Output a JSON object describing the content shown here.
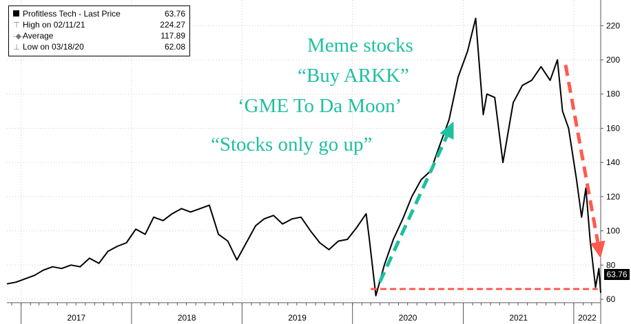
{
  "legend": {
    "series_name": "Profitless Tech - Last Price",
    "last_value": "63.76",
    "high_label": "High on 02/11/21",
    "high_value": "224.27",
    "average_label": "Average",
    "average_value": "117.89",
    "low_label": "Low on 03/18/20",
    "low_value": "62.08"
  },
  "annotations": {
    "line1": "Meme stocks",
    "line2": "“Buy ARKK”",
    "line3": "‘GME To Da Moon’",
    "line4": "“Stocks only go up”"
  },
  "last_price_label": "63.76",
  "colors": {
    "line": "#000000",
    "annotation_text": "#1fbf9f",
    "up_arrow": "#1fbf9f",
    "down_arrow": "#ff5a4f",
    "support_line": "#ff5a4f",
    "grid": "#c8c8c8"
  },
  "chart_data": {
    "type": "line",
    "title": "",
    "xlabel": "",
    "ylabel": "",
    "ylim": [
      58,
      235
    ],
    "yticks": [
      60,
      80,
      100,
      120,
      140,
      160,
      180,
      200,
      220
    ],
    "x_range": [
      "2016-11-15",
      "2022-03-31"
    ],
    "year_labels": [
      "2017",
      "2018",
      "2019",
      "2020",
      "2021",
      "2022"
    ],
    "grid": true,
    "legend_position": "top-left",
    "series": [
      {
        "name": "Profitless Tech - Last Price",
        "points": [
          [
            "2016-11-15",
            69
          ],
          [
            "2016-12-15",
            70
          ],
          [
            "2017-01-15",
            72
          ],
          [
            "2017-02-15",
            74
          ],
          [
            "2017-03-15",
            77
          ],
          [
            "2017-04-15",
            79
          ],
          [
            "2017-05-15",
            78
          ],
          [
            "2017-06-15",
            80
          ],
          [
            "2017-07-15",
            79
          ],
          [
            "2017-08-15",
            84
          ],
          [
            "2017-09-15",
            81
          ],
          [
            "2017-10-15",
            88
          ],
          [
            "2017-11-15",
            91
          ],
          [
            "2017-12-15",
            93
          ],
          [
            "2018-01-15",
            101
          ],
          [
            "2018-02-15",
            98
          ],
          [
            "2018-03-15",
            108
          ],
          [
            "2018-04-15",
            106
          ],
          [
            "2018-05-15",
            110
          ],
          [
            "2018-06-15",
            113
          ],
          [
            "2018-07-15",
            111
          ],
          [
            "2018-08-15",
            113
          ],
          [
            "2018-09-15",
            115
          ],
          [
            "2018-10-15",
            98
          ],
          [
            "2018-11-15",
            94
          ],
          [
            "2018-12-15",
            83
          ],
          [
            "2019-01-15",
            93
          ],
          [
            "2019-02-15",
            103
          ],
          [
            "2019-03-15",
            107
          ],
          [
            "2019-04-15",
            109
          ],
          [
            "2019-05-15",
            104
          ],
          [
            "2019-06-15",
            107
          ],
          [
            "2019-07-15",
            108
          ],
          [
            "2019-08-15",
            100
          ],
          [
            "2019-09-15",
            93
          ],
          [
            "2019-10-15",
            89
          ],
          [
            "2019-11-15",
            94
          ],
          [
            "2019-12-15",
            95
          ],
          [
            "2020-01-15",
            102
          ],
          [
            "2020-02-15",
            110
          ],
          [
            "2020-02-25",
            96
          ],
          [
            "2020-03-18",
            62.08
          ],
          [
            "2020-04-15",
            80
          ],
          [
            "2020-05-15",
            95
          ],
          [
            "2020-06-15",
            107
          ],
          [
            "2020-07-15",
            120
          ],
          [
            "2020-08-15",
            130
          ],
          [
            "2020-09-15",
            135
          ],
          [
            "2020-10-15",
            150
          ],
          [
            "2020-11-15",
            165
          ],
          [
            "2020-12-15",
            190
          ],
          [
            "2021-01-15",
            205
          ],
          [
            "2021-02-11",
            224.27
          ],
          [
            "2021-03-08",
            168
          ],
          [
            "2021-03-20",
            180
          ],
          [
            "2021-04-15",
            178
          ],
          [
            "2021-05-12",
            140
          ],
          [
            "2021-06-15",
            175
          ],
          [
            "2021-07-15",
            185
          ],
          [
            "2021-08-15",
            188
          ],
          [
            "2021-09-15",
            196
          ],
          [
            "2021-10-15",
            188
          ],
          [
            "2021-11-08",
            200
          ],
          [
            "2021-11-25",
            170
          ],
          [
            "2021-12-15",
            160
          ],
          [
            "2022-01-10",
            130
          ],
          [
            "2022-01-27",
            108
          ],
          [
            "2022-02-10",
            125
          ],
          [
            "2022-02-24",
            95
          ],
          [
            "2022-03-14",
            67
          ],
          [
            "2022-03-25",
            78
          ],
          [
            "2022-03-31",
            63.76
          ]
        ]
      }
    ],
    "overlays": {
      "up_arrow": {
        "from": [
          "2020-03-31",
          70
        ],
        "to": [
          "2020-11-30",
          164
        ]
      },
      "down_arrow": {
        "from": [
          "2021-12-05",
          197
        ],
        "to": [
          "2022-03-31",
          84
        ]
      },
      "support_line": {
        "from": [
          "2020-03-01",
          66
        ],
        "to": [
          "2022-03-21",
          66
        ]
      }
    }
  }
}
